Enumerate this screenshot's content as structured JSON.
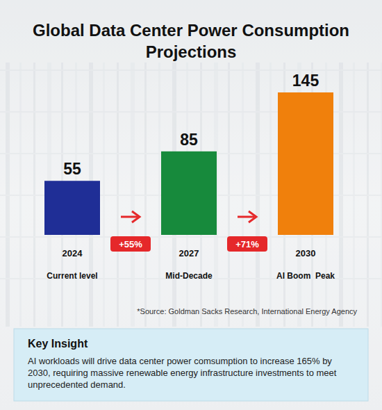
{
  "chart_data": {
    "type": "bar",
    "title": "Global Data Center Power Consumption Projections",
    "categories": [
      "2024",
      "2027",
      "2030"
    ],
    "category_descriptions": [
      "Current level",
      "Mid-Decade",
      "AI Boom  Peak"
    ],
    "values": [
      55,
      85,
      145
    ],
    "colors": [
      "#1f2e96",
      "#178a3c",
      "#f0800c"
    ],
    "growth_labels": [
      "+55%",
      "+71%"
    ],
    "ylim": [
      0,
      145
    ],
    "data_labels": true,
    "tick_labels": "x",
    "grid": false,
    "source": "*Source: Goldman Sacks Research, International Energy Agency",
    "insight": {
      "title": "Key Insight",
      "text": "AI workloads will drive data center power comsumption to increase 165% by 2030, requiring massive renewable energy infrastructure investments to meet unprecedented demand."
    }
  }
}
